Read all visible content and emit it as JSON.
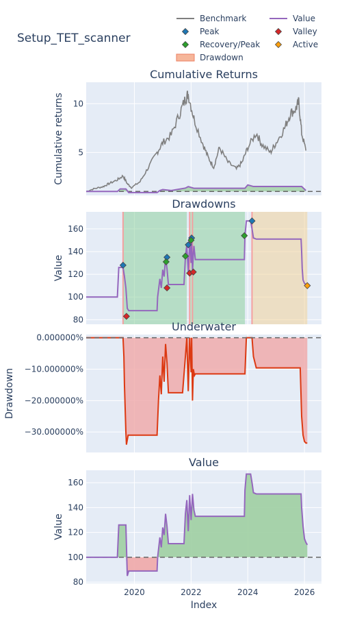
{
  "figure_title": "Setup_TET_scanner",
  "legend": {
    "items": [
      {
        "name": "Benchmark",
        "kind": "line",
        "color": "#7f7f7f"
      },
      {
        "name": "Value",
        "kind": "line",
        "color": "#9467bd"
      },
      {
        "name": "Peak",
        "kind": "diamond",
        "color": "#1f77b4"
      },
      {
        "name": "Valley",
        "kind": "diamond",
        "color": "#d62728"
      },
      {
        "name": "Recovery/Peak",
        "kind": "diamond",
        "color": "#2ca02c"
      },
      {
        "name": "Active",
        "kind": "diamond",
        "color": "#ff9f0e"
      },
      {
        "name": "Drawdown",
        "kind": "band",
        "color": "#f4a582"
      }
    ]
  },
  "colors": {
    "plot_bg": "#e5ecf6",
    "grid": "#ffffff",
    "benchmark": "#7f7f7f",
    "value": "#9467bd",
    "underwater": "#dc3912",
    "green_fill": "#9fcfa2",
    "red_fill": "#f0a8a8",
    "drawdown_band": "#f4a582"
  },
  "chart_data": [
    {
      "type": "line",
      "title": "Cumulative Returns",
      "ylabel": "Cumulative returns",
      "xlabel": "",
      "ylim": [
        0.6,
        12.2
      ],
      "y_ticks": [
        5,
        10
      ],
      "y_tick_labels": [
        "5",
        "10"
      ],
      "baseline": 1,
      "series": [
        {
          "name": "Benchmark",
          "x": [
            2018.3,
            2018.6,
            2018.9,
            2019.1,
            2019.4,
            2019.6,
            2019.75,
            2019.9,
            2020.2,
            2020.5,
            2020.8,
            2021.0,
            2021.3,
            2021.6,
            2021.8,
            2021.9,
            2022.1,
            2022.4,
            2022.6,
            2022.8,
            2023.0,
            2023.3,
            2023.6,
            2023.8,
            2024.0,
            2024.3,
            2024.5,
            2024.8,
            2025.0,
            2025.3,
            2025.5,
            2025.7,
            2025.8,
            2025.9,
            2026.05
          ],
          "values": [
            1.0,
            1.3,
            1.5,
            1.8,
            2.2,
            2.6,
            1.8,
            1.4,
            2.0,
            3.5,
            5.0,
            6.0,
            6.8,
            9.0,
            10.5,
            11.0,
            8.5,
            6.0,
            4.5,
            3.5,
            5.5,
            4.0,
            3.3,
            4.0,
            5.5,
            7.0,
            5.8,
            5.0,
            6.0,
            7.5,
            9.0,
            9.5,
            10.2,
            7.0,
            5.2
          ]
        },
        {
          "name": "Value",
          "x": [
            2018.3,
            2019.4,
            2019.5,
            2019.7,
            2019.8,
            2020.8,
            2020.9,
            2021.0,
            2021.3,
            2021.8,
            2021.9,
            2022.1,
            2023.9,
            2024.0,
            2024.2,
            2025.9,
            2026.05
          ],
          "values": [
            1.0,
            1.0,
            1.26,
            1.26,
            0.89,
            0.89,
            1.1,
            1.2,
            1.1,
            1.35,
            1.5,
            1.33,
            1.33,
            1.67,
            1.51,
            1.51,
            1.1
          ]
        }
      ]
    },
    {
      "type": "line",
      "title": "Drawdowns",
      "ylabel": "Value",
      "xlabel": "",
      "ylim": [
        76,
        175
      ],
      "y_ticks": [
        80,
        100,
        120,
        140,
        160
      ],
      "y_tick_labels": [
        "80",
        "100",
        "120",
        "140",
        "160"
      ],
      "series": [
        {
          "name": "Value",
          "x": [
            2018.3,
            2019.4,
            2019.45,
            2019.55,
            2019.6,
            2019.65,
            2019.7,
            2019.75,
            2019.8,
            2020.8,
            2020.82,
            2020.9,
            2020.95,
            2021.0,
            2021.05,
            2021.1,
            2021.15,
            2021.2,
            2021.3,
            2021.5,
            2021.75,
            2021.8,
            2021.85,
            2021.9,
            2021.95,
            2022.0,
            2022.02,
            2022.05,
            2022.08,
            2022.1,
            2022.15,
            2023.88,
            2023.9,
            2023.95,
            2024.0,
            2024.1,
            2024.15,
            2024.2,
            2024.3,
            2025.88,
            2025.9,
            2025.92,
            2025.95,
            2026.0,
            2026.05,
            2026.1
          ],
          "values": [
            100,
            100,
            126,
            126,
            126,
            118,
            108,
            90,
            88,
            88,
            100,
            116,
            108,
            124,
            118,
            135,
            125,
            111,
            111,
            111,
            111,
            135,
            146,
            121,
            150,
            130,
            151,
            122,
            138,
            145,
            133,
            133,
            154,
            167,
            167,
            167,
            160,
            152,
            151,
            151,
            140,
            125,
            115,
            112,
            111,
            110
          ]
        }
      ],
      "markers": [
        {
          "type": "Peak",
          "x": 2019.6,
          "y": 128
        },
        {
          "type": "Valley",
          "x": 2019.72,
          "y": 83
        },
        {
          "type": "Peak",
          "x": 2021.15,
          "y": 135
        },
        {
          "type": "Valley",
          "x": 2021.15,
          "y": 108
        },
        {
          "type": "Recovery/Peak",
          "x": 2021.12,
          "y": 131
        },
        {
          "type": "Recovery/Peak",
          "x": 2021.8,
          "y": 136
        },
        {
          "type": "Peak",
          "x": 2021.9,
          "y": 146
        },
        {
          "type": "Valley",
          "x": 2021.95,
          "y": 121
        },
        {
          "type": "Peak",
          "x": 2022.02,
          "y": 152
        },
        {
          "type": "Recovery/Peak",
          "x": 2022.0,
          "y": 150
        },
        {
          "type": "Valley",
          "x": 2022.08,
          "y": 122
        },
        {
          "type": "Recovery/Peak",
          "x": 2023.88,
          "y": 154
        },
        {
          "type": "Peak",
          "x": 2024.15,
          "y": 167
        },
        {
          "type": "Active",
          "x": 2026.1,
          "y": 110
        }
      ],
      "periods": [
        {
          "kind": "recovered",
          "x": [
            2019.6,
            2021.85
          ]
        },
        {
          "kind": "recovered",
          "x": [
            2021.95,
            2022.05
          ]
        },
        {
          "kind": "recovered",
          "x": [
            2022.05,
            2023.9
          ]
        },
        {
          "kind": "active",
          "x": [
            2024.15,
            2026.1
          ]
        }
      ]
    },
    {
      "type": "area",
      "title": "Underwater",
      "ylabel": "Drawdown",
      "xlabel": "",
      "ylim": [
        -0.365,
        0.01
      ],
      "y_ticks": [
        0,
        -0.1,
        -0.2,
        -0.3
      ],
      "y_tick_labels": [
        "0.000000%",
        "−10.000000%",
        "−20.000000%",
        "−30.000000%"
      ],
      "series": [
        {
          "name": "Drawdown",
          "x": [
            2018.3,
            2019.6,
            2019.63,
            2019.65,
            2019.7,
            2019.72,
            2019.78,
            2020.8,
            2020.85,
            2020.9,
            2020.95,
            2021.0,
            2021.05,
            2021.1,
            2021.15,
            2021.2,
            2021.3,
            2021.7,
            2021.8,
            2021.85,
            2021.9,
            2021.95,
            2022.0,
            2022.02,
            2022.05,
            2022.08,
            2022.12,
            2022.15,
            2023.9,
            2023.95,
            2024.15,
            2024.2,
            2024.3,
            2025.85,
            2025.9,
            2025.95,
            2026.0,
            2026.05,
            2026.1
          ],
          "values": [
            0,
            0,
            -0.06,
            -0.15,
            -0.3,
            -0.34,
            -0.31,
            -0.31,
            -0.2,
            -0.12,
            -0.18,
            -0.06,
            -0.14,
            -0.02,
            -0.08,
            -0.175,
            -0.175,
            -0.175,
            -0.06,
            0,
            -0.17,
            0,
            -0.11,
            0,
            -0.2,
            -0.1,
            -0.12,
            -0.115,
            -0.115,
            0,
            0,
            -0.06,
            -0.096,
            -0.096,
            -0.25,
            -0.31,
            -0.33,
            -0.335,
            -0.335
          ]
        }
      ]
    },
    {
      "type": "area",
      "title": "Value",
      "ylabel": "Value",
      "xlabel": "Index",
      "ylim": [
        79,
        170
      ],
      "y_ticks": [
        80,
        100,
        120,
        140,
        160
      ],
      "y_tick_labels": [
        "80",
        "100",
        "120",
        "140",
        "160"
      ],
      "x_ticks": [
        2020,
        2022,
        2024,
        2026
      ],
      "x_tick_labels": [
        "2020",
        "2022",
        "2024",
        "2026"
      ],
      "baseline": 100,
      "series": [
        {
          "name": "Value",
          "x": [
            2018.3,
            2019.4,
            2019.45,
            2019.7,
            2019.75,
            2019.8,
            2020.8,
            2020.82,
            2020.9,
            2020.95,
            2021.0,
            2021.05,
            2021.1,
            2021.15,
            2021.2,
            2021.75,
            2021.8,
            2021.85,
            2021.9,
            2021.95,
            2022.0,
            2022.05,
            2022.1,
            2022.15,
            2023.88,
            2023.9,
            2023.95,
            2024.0,
            2024.1,
            2024.15,
            2024.2,
            2024.3,
            2025.88,
            2025.9,
            2025.95,
            2026.0,
            2026.05,
            2026.1
          ],
          "values": [
            100,
            100,
            126,
            126,
            85,
            89,
            89,
            100,
            116,
            108,
            124,
            118,
            135,
            125,
            111,
            111,
            135,
            146,
            121,
            150,
            130,
            151,
            138,
            133,
            133,
            154,
            167,
            167,
            167,
            160,
            152,
            151,
            151,
            140,
            125,
            115,
            112,
            110
          ]
        }
      ]
    }
  ]
}
